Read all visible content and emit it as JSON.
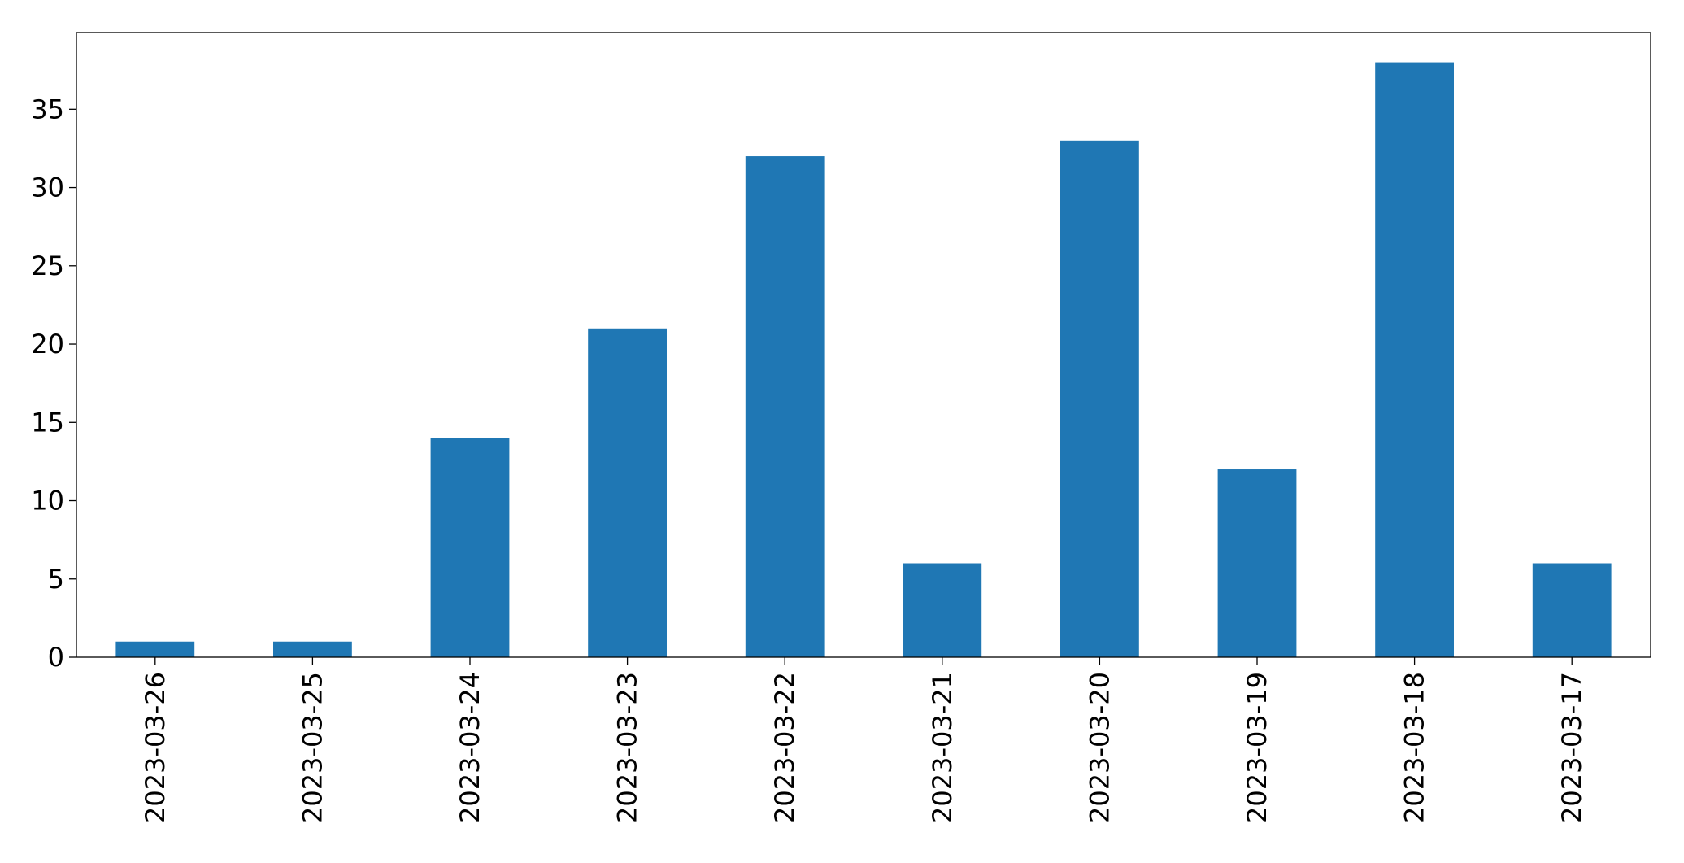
{
  "chart_data": {
    "type": "bar",
    "categories": [
      "2023-03-26",
      "2023-03-25",
      "2023-03-24",
      "2023-03-23",
      "2023-03-22",
      "2023-03-21",
      "2023-03-20",
      "2023-03-19",
      "2023-03-18",
      "2023-03-17"
    ],
    "values": [
      1,
      1,
      14,
      21,
      32,
      6,
      33,
      12,
      38,
      6
    ],
    "color": "#1f77b4",
    "ylim": [
      0,
      39.9
    ],
    "yticks": [
      0,
      5,
      10,
      15,
      20,
      25,
      30,
      35
    ],
    "grid": false
  }
}
